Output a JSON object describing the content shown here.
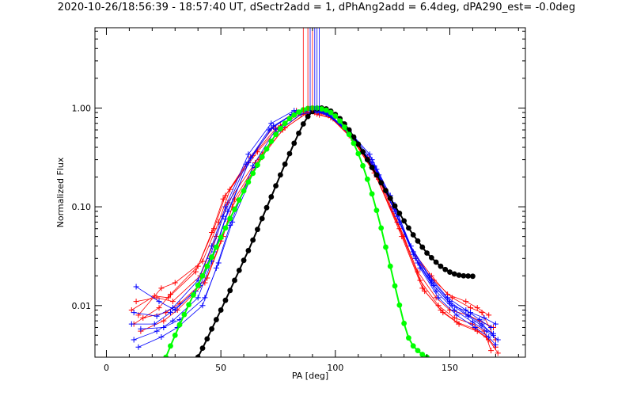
{
  "chart_data": {
    "type": "line",
    "title": "2020-10-26/18:56:39 - 18:57:40 UT, dSectr2add = 1, dPhAng2add = 6.4deg, dPA290_est= -0.0deg",
    "xlabel": "PA [deg]",
    "ylabel": "Normalized Flux",
    "xlim": [
      -5,
      183
    ],
    "ylim": [
      0.003,
      6.5
    ],
    "yscale": "log",
    "x_ticks": [
      0,
      50,
      100,
      150
    ],
    "x_tick_labels": [
      "0",
      "50",
      "100",
      "150"
    ],
    "y_ticks": [
      0.01,
      0.1,
      1.0
    ],
    "y_tick_labels": [
      "0.01",
      "0.10",
      "1.00"
    ],
    "grid": false,
    "colors": {
      "red": "#ff0000",
      "blue": "#0000ff",
      "black": "#000000",
      "green": "#00ff00"
    },
    "series": [
      {
        "color": "red",
        "marker": "plus",
        "x": [
          12,
          23,
          28,
          40,
          47,
          52,
          64,
          74,
          84,
          90,
          96,
          106,
          116,
          127,
          136,
          144,
          150,
          158,
          163,
          169
        ],
        "y": [
          0.0065,
          0.0095,
          0.013,
          0.025,
          0.06,
          0.13,
          0.33,
          0.62,
          0.9,
          0.95,
          0.88,
          0.55,
          0.25,
          0.07,
          0.022,
          0.012,
          0.009,
          0.008,
          0.007,
          0.006
        ]
      },
      {
        "color": "red",
        "marker": "plus",
        "x": [
          13,
          22,
          29,
          41,
          48,
          53,
          65,
          75,
          85,
          90,
          95,
          105,
          115,
          126,
          135,
          143,
          151,
          159,
          164,
          170
        ],
        "y": [
          0.011,
          0.012,
          0.011,
          0.02,
          0.05,
          0.11,
          0.28,
          0.58,
          0.86,
          0.98,
          0.92,
          0.6,
          0.3,
          0.09,
          0.03,
          0.018,
          0.012,
          0.0095,
          0.0085,
          0.0045
        ]
      },
      {
        "color": "red",
        "marker": "plus",
        "x": [
          14,
          24,
          30,
          42,
          49,
          54,
          66,
          76,
          86,
          91,
          97,
          107,
          117,
          128,
          137,
          145,
          152,
          160,
          165,
          168
        ],
        "y": [
          0.008,
          0.015,
          0.017,
          0.028,
          0.07,
          0.15,
          0.36,
          0.66,
          0.92,
          0.9,
          0.84,
          0.5,
          0.22,
          0.06,
          0.018,
          0.01,
          0.0075,
          0.0065,
          0.0055,
          0.0035
        ]
      },
      {
        "color": "red",
        "marker": "plus",
        "x": [
          15,
          25,
          31,
          43,
          50,
          55,
          67,
          77,
          87,
          92,
          98,
          108,
          118,
          129,
          138,
          146,
          153,
          161,
          166,
          170
        ],
        "y": [
          0.0055,
          0.007,
          0.009,
          0.017,
          0.045,
          0.1,
          0.3,
          0.6,
          0.88,
          0.87,
          0.8,
          0.47,
          0.2,
          0.05,
          0.015,
          0.009,
          0.0068,
          0.0058,
          0.0048,
          0.0038
        ]
      },
      {
        "color": "red",
        "marker": "plus",
        "x": [
          11,
          21,
          27,
          39,
          46,
          51,
          63,
          73,
          83,
          89,
          94,
          104,
          114,
          125,
          134,
          142,
          149,
          157,
          162,
          167
        ],
        "y": [
          0.009,
          0.0125,
          0.012,
          0.022,
          0.055,
          0.12,
          0.32,
          0.64,
          0.94,
          0.99,
          0.93,
          0.62,
          0.32,
          0.1,
          0.035,
          0.02,
          0.013,
          0.011,
          0.0095,
          0.008
        ]
      },
      {
        "color": "red",
        "marker": "plus",
        "x": [
          16,
          26,
          32,
          44,
          51,
          56,
          68,
          78,
          88,
          93,
          99,
          109,
          119,
          130,
          139,
          147,
          154,
          162,
          167,
          171
        ],
        "y": [
          0.0075,
          0.0085,
          0.0105,
          0.019,
          0.05,
          0.12,
          0.34,
          0.63,
          0.9,
          0.85,
          0.78,
          0.45,
          0.19,
          0.05,
          0.014,
          0.0085,
          0.0065,
          0.0055,
          0.0045,
          0.0033
        ]
      },
      {
        "color": "blue",
        "marker": "plus",
        "x": [
          12,
          22,
          29,
          40,
          46,
          52,
          62,
          72,
          82,
          90,
          96,
          106,
          116,
          125,
          134,
          142,
          150,
          158,
          164,
          169
        ],
        "y": [
          0.0045,
          0.0055,
          0.007,
          0.012,
          0.028,
          0.075,
          0.28,
          0.62,
          0.88,
          0.97,
          0.9,
          0.58,
          0.3,
          0.11,
          0.035,
          0.018,
          0.011,
          0.008,
          0.0065,
          0.005
        ]
      },
      {
        "color": "blue",
        "marker": "plus",
        "x": [
          13,
          23,
          30,
          41,
          47,
          53,
          63,
          73,
          83,
          91,
          97,
          107,
          117,
          126,
          135,
          143,
          151,
          159,
          165,
          170
        ],
        "y": [
          0.0155,
          0.011,
          0.009,
          0.016,
          0.035,
          0.09,
          0.31,
          0.66,
          0.91,
          0.95,
          0.86,
          0.52,
          0.26,
          0.09,
          0.03,
          0.016,
          0.01,
          0.0085,
          0.0075,
          0.0065
        ]
      },
      {
        "color": "blue",
        "marker": "plus",
        "x": [
          11,
          21,
          28,
          39,
          45,
          51,
          61,
          71,
          81,
          89,
          95,
          105,
          115,
          124,
          133,
          141,
          149,
          157,
          163,
          168
        ],
        "y": [
          0.0065,
          0.0065,
          0.0085,
          0.014,
          0.03,
          0.08,
          0.27,
          0.6,
          0.86,
          0.99,
          0.93,
          0.62,
          0.34,
          0.13,
          0.04,
          0.02,
          0.012,
          0.009,
          0.0072,
          0.006
        ]
      },
      {
        "color": "blue",
        "marker": "plus",
        "x": [
          14,
          24,
          31,
          42,
          48,
          54,
          64,
          74,
          84,
          92,
          98,
          108,
          118,
          127,
          136,
          144,
          152,
          160,
          166,
          171
        ],
        "y": [
          0.0038,
          0.0048,
          0.006,
          0.01,
          0.024,
          0.065,
          0.26,
          0.61,
          0.9,
          0.92,
          0.84,
          0.5,
          0.24,
          0.08,
          0.027,
          0.014,
          0.009,
          0.0068,
          0.0055,
          0.0045
        ]
      },
      {
        "color": "blue",
        "marker": "plus",
        "x": [
          12,
          22,
          29,
          40,
          46,
          52,
          62,
          72,
          82,
          90,
          96,
          106,
          116,
          125,
          134,
          142,
          150,
          158,
          164,
          169
        ],
        "y": [
          0.0085,
          0.0078,
          0.0095,
          0.018,
          0.04,
          0.1,
          0.34,
          0.7,
          0.94,
          0.96,
          0.88,
          0.56,
          0.28,
          0.1,
          0.033,
          0.017,
          0.0105,
          0.0078,
          0.0062,
          0.0052
        ]
      },
      {
        "color": "blue",
        "marker": "plus",
        "x": [
          15,
          25,
          32,
          43,
          49,
          55,
          65,
          75,
          85,
          93,
          99,
          109,
          119,
          128,
          137,
          145,
          153,
          161,
          167,
          170
        ],
        "y": [
          0.0058,
          0.006,
          0.0072,
          0.012,
          0.027,
          0.07,
          0.25,
          0.58,
          0.87,
          0.9,
          0.8,
          0.46,
          0.21,
          0.07,
          0.024,
          0.012,
          0.008,
          0.006,
          0.0048,
          0.004
        ]
      },
      {
        "color": "black",
        "marker": "dot",
        "x": [
          40,
          42,
          44,
          46,
          48,
          50,
          52,
          54,
          56,
          58,
          60,
          62,
          64,
          66,
          68,
          70,
          72,
          74,
          76,
          78,
          80,
          82,
          84,
          86,
          88,
          90,
          92,
          94,
          96,
          98,
          100,
          102,
          104,
          106,
          108,
          110,
          112,
          114,
          116,
          118,
          120,
          122,
          124,
          126,
          128,
          130,
          132,
          134,
          136,
          138,
          140,
          142,
          144,
          146,
          148,
          150,
          152,
          154,
          156,
          158,
          160
        ],
        "y": [
          0.003,
          0.0037,
          0.0046,
          0.0058,
          0.0072,
          0.009,
          0.0113,
          0.0142,
          0.018,
          0.0227,
          0.0287,
          0.036,
          0.046,
          0.059,
          0.076,
          0.098,
          0.126,
          0.163,
          0.21,
          0.27,
          0.345,
          0.44,
          0.555,
          0.69,
          0.82,
          0.92,
          0.98,
          1.0,
          0.98,
          0.93,
          0.86,
          0.78,
          0.69,
          0.6,
          0.51,
          0.43,
          0.36,
          0.3,
          0.25,
          0.21,
          0.175,
          0.146,
          0.122,
          0.102,
          0.086,
          0.072,
          0.061,
          0.052,
          0.045,
          0.039,
          0.034,
          0.0305,
          0.0275,
          0.025,
          0.0232,
          0.0218,
          0.0209,
          0.0203,
          0.02,
          0.0199,
          0.0198
        ]
      },
      {
        "color": "green",
        "marker": "dot",
        "x": [
          26,
          28,
          30,
          32,
          34,
          36,
          38,
          40,
          42,
          44,
          46,
          48,
          50,
          52,
          54,
          56,
          58,
          60,
          62,
          64,
          66,
          68,
          70,
          72,
          74,
          76,
          78,
          80,
          82,
          84,
          86,
          88,
          90,
          92,
          94,
          96,
          98,
          100,
          102,
          104,
          106,
          108,
          110,
          112,
          114,
          116,
          118,
          120,
          122,
          124,
          126,
          128,
          130,
          132,
          134,
          136,
          138,
          140
        ],
        "y": [
          0.003,
          0.0039,
          0.005,
          0.0064,
          0.0081,
          0.0102,
          0.0128,
          0.016,
          0.02,
          0.025,
          0.031,
          0.039,
          0.049,
          0.061,
          0.076,
          0.094,
          0.117,
          0.145,
          0.178,
          0.218,
          0.265,
          0.32,
          0.385,
          0.46,
          0.54,
          0.62,
          0.7,
          0.78,
          0.85,
          0.91,
          0.96,
          0.99,
          1.0,
          1.0,
          0.98,
          0.95,
          0.9,
          0.83,
          0.74,
          0.64,
          0.54,
          0.44,
          0.345,
          0.26,
          0.19,
          0.135,
          0.092,
          0.061,
          0.039,
          0.025,
          0.0158,
          0.0101,
          0.0066,
          0.0047,
          0.0039,
          0.0035,
          0.0032,
          0.003
        ]
      },
      {
        "color": "red",
        "marker": "none",
        "x": [
          86,
          86
        ],
        "y": [
          0.9,
          6.5
        ]
      },
      {
        "color": "red",
        "marker": "none",
        "x": [
          88,
          88
        ],
        "y": [
          0.9,
          6.5
        ]
      },
      {
        "color": "red",
        "marker": "none",
        "x": [
          90,
          90
        ],
        "y": [
          0.9,
          6.5
        ]
      },
      {
        "color": "blue",
        "marker": "none",
        "x": [
          89,
          89
        ],
        "y": [
          0.9,
          6.5
        ]
      },
      {
        "color": "blue",
        "marker": "none",
        "x": [
          91,
          91
        ],
        "y": [
          0.9,
          6.5
        ]
      },
      {
        "color": "blue",
        "marker": "none",
        "x": [
          92,
          92
        ],
        "y": [
          0.9,
          6.5
        ]
      },
      {
        "color": "blue",
        "marker": "none",
        "x": [
          93,
          93
        ],
        "y": [
          0.9,
          6.5
        ]
      }
    ]
  }
}
